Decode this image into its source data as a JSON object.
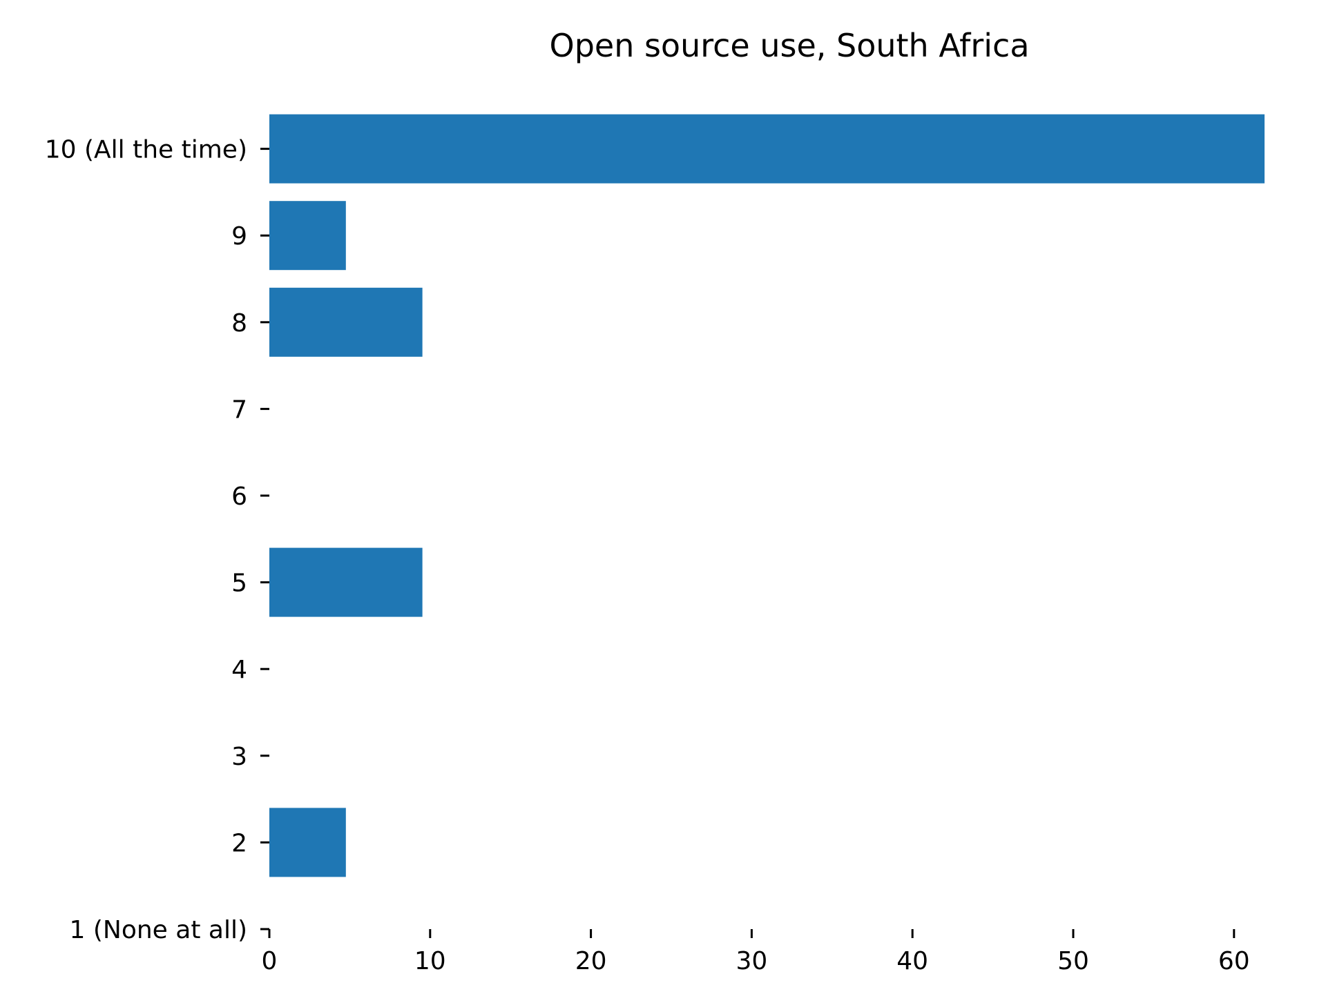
{
  "chart_data": {
    "type": "bar",
    "orientation": "horizontal",
    "title": "Open source use, South Africa",
    "xlabel": "",
    "ylabel": "",
    "categories": [
      "1 (None at all)",
      "2",
      "3",
      "4",
      "5",
      "6",
      "7",
      "8",
      "9",
      "10 (All the time)"
    ],
    "values": [
      0,
      4.76,
      0,
      0,
      9.52,
      0,
      0,
      9.52,
      4.76,
      61.9
    ],
    "xlim": [
      0,
      65
    ],
    "xticks": [
      0,
      10,
      20,
      30,
      40,
      50,
      60
    ],
    "grid": false,
    "legend": "none",
    "bar_color": "#1f77b4"
  }
}
